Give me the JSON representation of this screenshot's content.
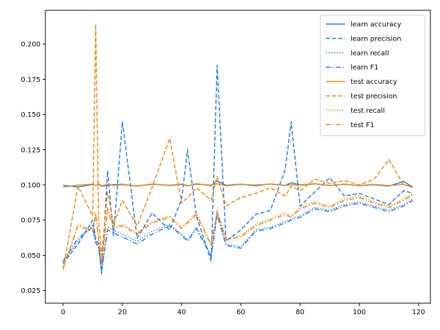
{
  "chart_data": {
    "type": "line",
    "title": "",
    "xlabel": "",
    "ylabel": "",
    "xlim": [
      -6,
      124
    ],
    "ylim": [
      0.016,
      0.224
    ],
    "xticks": [
      0,
      20,
      40,
      60,
      80,
      100,
      120
    ],
    "yticks": [
      0.025,
      0.05,
      0.075,
      0.1,
      0.125,
      0.15,
      0.175,
      0.2
    ],
    "xtick_labels": [
      "0",
      "20",
      "40",
      "60",
      "80",
      "100",
      "120"
    ],
    "ytick_labels": [
      "0.025",
      "0.050",
      "0.075",
      "0.100",
      "0.125",
      "0.150",
      "0.175",
      "0.200"
    ],
    "grid": false,
    "legend_position": "top-right",
    "colors": {
      "learn": "#1f77f4",
      "test": "#f28505"
    },
    "x": [
      0,
      5,
      10,
      11,
      12,
      13,
      15,
      17,
      20,
      25,
      30,
      36,
      40,
      42,
      45,
      50,
      52,
      55,
      60,
      65,
      70,
      75,
      77,
      80,
      85,
      90,
      95,
      100,
      105,
      110,
      115,
      118
    ],
    "series": [
      {
        "name": "learn accuracy",
        "style": "solid",
        "color": "#1f77f4",
        "values": [
          0.0998,
          0.0985,
          0.1003,
          0.0995,
          0.1005,
          0.099,
          0.0998,
          0.1002,
          0.1004,
          0.0992,
          0.1006,
          0.0996,
          0.1004,
          0.0993,
          0.1008,
          0.0995,
          0.1028,
          0.0997,
          0.1005,
          0.0994,
          0.1007,
          0.0996,
          0.1015,
          0.1,
          0.1008,
          0.0995,
          0.1005,
          0.0995,
          0.1002,
          0.0992,
          0.1024,
          0.0985
        ]
      },
      {
        "name": "learn precision",
        "style": "dashed",
        "color": "#1f77f4",
        "values": [
          0.044,
          0.058,
          0.075,
          0.062,
          0.058,
          0.037,
          0.11,
          0.064,
          0.145,
          0.062,
          0.08,
          0.068,
          0.09,
          0.125,
          0.078,
          0.046,
          0.185,
          0.06,
          0.068,
          0.079,
          0.082,
          0.111,
          0.145,
          0.085,
          0.095,
          0.105,
          0.092,
          0.094,
          0.09,
          0.086,
          0.096,
          0.094
        ]
      },
      {
        "name": "learn recall",
        "style": "dotted",
        "color": "#1f77f4",
        "values": [
          0.045,
          0.06,
          0.072,
          0.06,
          0.056,
          0.038,
          0.07,
          0.068,
          0.065,
          0.06,
          0.067,
          0.072,
          0.065,
          0.061,
          0.07,
          0.05,
          0.08,
          0.058,
          0.056,
          0.068,
          0.07,
          0.074,
          0.076,
          0.078,
          0.084,
          0.082,
          0.086,
          0.088,
          0.085,
          0.082,
          0.086,
          0.09
        ]
      },
      {
        "name": "learn F1",
        "style": "dashdot",
        "color": "#1f77f4",
        "values": [
          0.046,
          0.062,
          0.07,
          0.059,
          0.055,
          0.039,
          0.068,
          0.066,
          0.063,
          0.058,
          0.065,
          0.071,
          0.064,
          0.06,
          0.069,
          0.049,
          0.079,
          0.057,
          0.055,
          0.067,
          0.069,
          0.073,
          0.075,
          0.077,
          0.083,
          0.081,
          0.085,
          0.087,
          0.084,
          0.081,
          0.085,
          0.089
        ]
      },
      {
        "name": "test accuracy",
        "style": "solid",
        "color": "#f28505",
        "values": [
          0.0985,
          0.0998,
          0.1006,
          0.0995,
          0.1008,
          0.0993,
          0.1004,
          0.0996,
          0.1002,
          0.0994,
          0.1003,
          0.0998,
          0.1006,
          0.0995,
          0.1004,
          0.0999,
          0.1008,
          0.0994,
          0.1003,
          0.0999,
          0.1006,
          0.0995,
          0.1002,
          0.0998,
          0.1007,
          0.0996,
          0.1004,
          0.0997,
          0.1003,
          0.0995,
          0.1004,
          0.0982
        ]
      },
      {
        "name": "test precision",
        "style": "dashed",
        "color": "#f28505",
        "values": [
          0.04,
          0.099,
          0.078,
          0.214,
          0.075,
          0.05,
          0.095,
          0.072,
          0.089,
          0.071,
          0.098,
          0.133,
          0.087,
          0.091,
          0.098,
          0.089,
          0.106,
          0.085,
          0.091,
          0.094,
          0.098,
          0.092,
          0.099,
          0.096,
          0.104,
          0.101,
          0.103,
          0.1,
          0.104,
          0.118,
          0.1,
          0.099
        ]
      },
      {
        "name": "test recall",
        "style": "dotted",
        "color": "#f28505",
        "values": [
          0.04,
          0.072,
          0.068,
          0.08,
          0.062,
          0.045,
          0.084,
          0.07,
          0.072,
          0.066,
          0.074,
          0.078,
          0.07,
          0.074,
          0.08,
          0.058,
          0.082,
          0.062,
          0.064,
          0.072,
          0.076,
          0.08,
          0.078,
          0.084,
          0.088,
          0.085,
          0.09,
          0.092,
          0.088,
          0.085,
          0.09,
          0.094
        ]
      },
      {
        "name": "test F1",
        "style": "dashdot",
        "color": "#f28505",
        "values": [
          0.041,
          0.071,
          0.067,
          0.079,
          0.061,
          0.044,
          0.083,
          0.069,
          0.071,
          0.065,
          0.073,
          0.077,
          0.069,
          0.073,
          0.079,
          0.057,
          0.081,
          0.061,
          0.063,
          0.071,
          0.075,
          0.079,
          0.077,
          0.083,
          0.087,
          0.084,
          0.089,
          0.091,
          0.087,
          0.084,
          0.089,
          0.093
        ]
      }
    ]
  }
}
